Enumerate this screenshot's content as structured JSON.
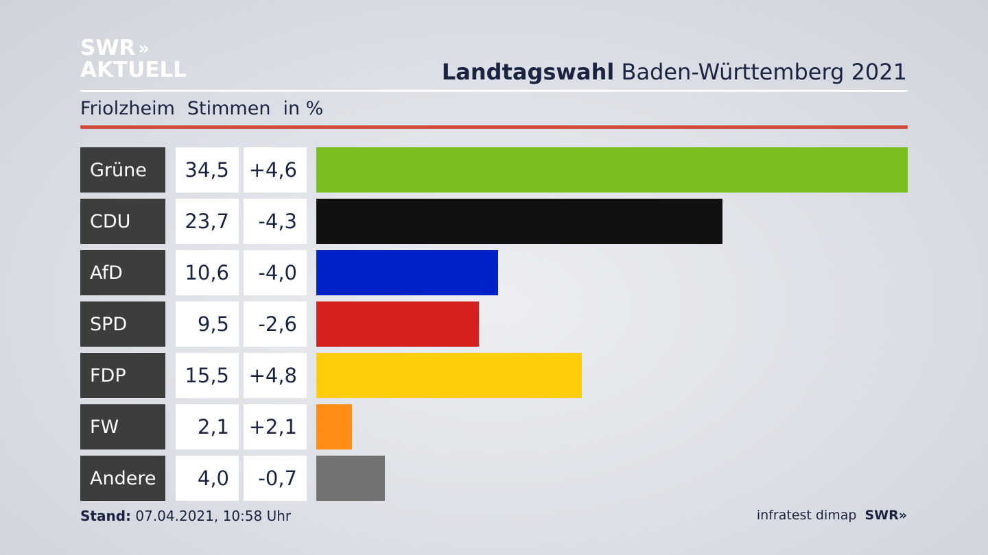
{
  "logo": {
    "line1": "SWR",
    "line1_arrows": "»",
    "line2": "AKTUELL"
  },
  "header": {
    "title_bold": "Landtagswahl",
    "title_rest": " Baden-Württemberg 2021"
  },
  "subheader": {
    "place": "Friolzheim",
    "measure": "Stimmen",
    "unit": "in %"
  },
  "chart_data": {
    "type": "bar",
    "orientation": "horizontal",
    "categories": [
      "Grüne",
      "CDU",
      "AfD",
      "SPD",
      "FDP",
      "FW",
      "Andere"
    ],
    "values": [
      34.5,
      23.7,
      10.6,
      9.5,
      15.5,
      2.1,
      4.0
    ],
    "value_labels": [
      "34,5",
      "23,7",
      "10,6",
      "9,5",
      "15,5",
      "2,1",
      "4,0"
    ],
    "change_labels": [
      "+4,6",
      "-4,3",
      "-4,0",
      "-2,6",
      "+4,8",
      "+2,1",
      "-0,7"
    ],
    "colors": [
      "#78be1e",
      "#111111",
      "#0021c8",
      "#d62020",
      "#ffcc09",
      "#ff8c17",
      "#727272"
    ],
    "xlim": [
      0,
      34.5
    ]
  },
  "footer": {
    "stand_label": "Stand:",
    "stand_value": " 07.04.2021, 10:58 Uhr",
    "source": "infratest dimap",
    "brand": "SWR»"
  }
}
